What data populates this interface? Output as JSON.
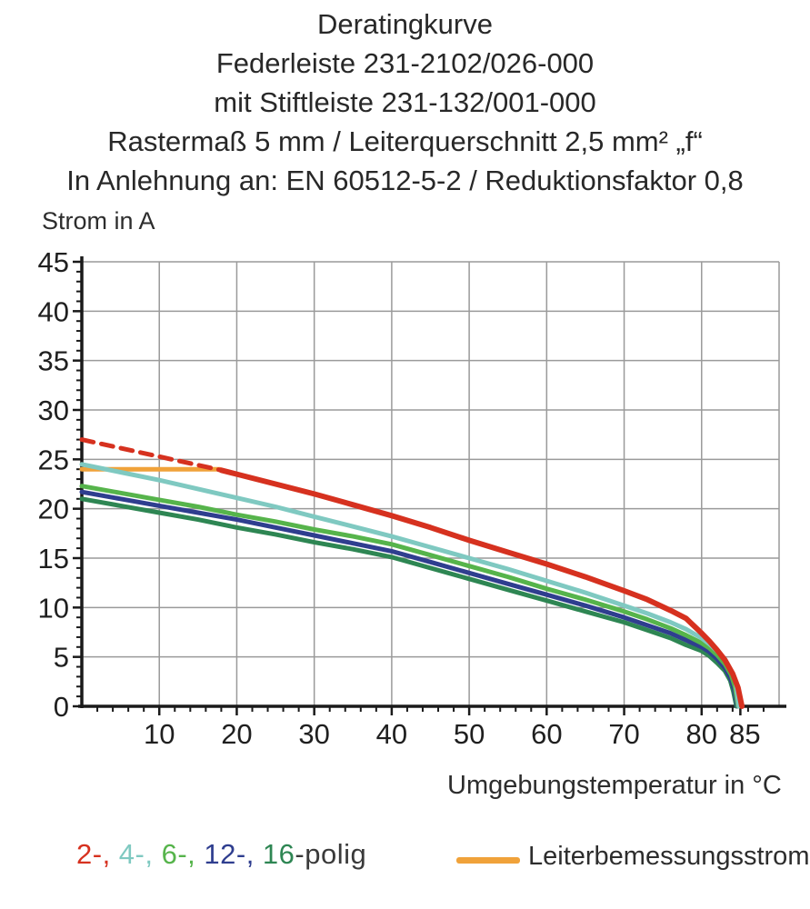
{
  "title": {
    "lines": [
      "Deratingkurve",
      "Federleiste 231-2102/026-000",
      "mit Stiftleiste 231-132/001-000",
      "Rastermaß 5 mm / Leiterquerschnitt 2,5 mm² „f“",
      "In Anlehnung an: EN 60512-5-2 / Reduktionsfaktor 0,8"
    ]
  },
  "colors": {
    "red": "#d6311f",
    "teal": "#7fc9c1",
    "light_green": "#56b44b",
    "dark_blue": "#2f3e8f",
    "dark_green": "#2e8653",
    "orange": "#f0a23a",
    "grid": "#9a9a9a",
    "axis": "#1a1a1a"
  },
  "legend": {
    "poles_parts": [
      {
        "text": "2-,",
        "color": "#d6311f"
      },
      {
        "text": " 4-,",
        "color": "#7fc9c1"
      },
      {
        "text": " 6-,",
        "color": "#56b44b"
      },
      {
        "text": " 12-,",
        "color": "#2f3e8f"
      },
      {
        "text": " 16",
        "color": "#2e8653"
      },
      {
        "text": "-polig",
        "color": "#3a3a3a"
      }
    ],
    "line_label": "Leiterbemessungsstrom",
    "line_color": "#f0a23a"
  },
  "chart_data": {
    "type": "line",
    "title": "Deratingkurve",
    "xlabel": "Umgebungstemperatur in °C",
    "ylabel": "Strom in A",
    "xlim": [
      0,
      90
    ],
    "ylim": [
      0,
      45
    ],
    "grid": true,
    "x_gridline_step": 10,
    "y_gridline_step": 5,
    "x_minor_tick_step": 2,
    "y_minor_tick_step": 1,
    "x_major_ticks": [
      10,
      20,
      30,
      40,
      50,
      60,
      70,
      80,
      85
    ],
    "y_major_ticks": [
      0,
      5,
      10,
      15,
      20,
      25,
      30,
      35,
      40,
      45
    ],
    "legend_position": "bottom",
    "series": [
      {
        "name": "Leiterbemessungsstrom",
        "color": "#f0a23a",
        "style": "solid",
        "width": 5,
        "points": [
          [
            0,
            24
          ],
          [
            17.8,
            24
          ]
        ]
      },
      {
        "name": "2-polig oberhalb Leiterbemessungsstrom",
        "color": "#d6311f",
        "style": "dashed",
        "width": 5,
        "points": [
          [
            0,
            27
          ],
          [
            18,
            23.9
          ]
        ]
      },
      {
        "name": "16-polig",
        "color": "#2e8653",
        "style": "solid",
        "width": 5,
        "points": [
          [
            0,
            21.0
          ],
          [
            5,
            20.3
          ],
          [
            10,
            19.6
          ],
          [
            15,
            18.9
          ],
          [
            20,
            18.1
          ],
          [
            25,
            17.4
          ],
          [
            30,
            16.6
          ],
          [
            35,
            15.9
          ],
          [
            40,
            15.1
          ],
          [
            45,
            14.0
          ],
          [
            50,
            12.9
          ],
          [
            55,
            11.8
          ],
          [
            60,
            10.7
          ],
          [
            65,
            9.6
          ],
          [
            70,
            8.5
          ],
          [
            73,
            7.7
          ],
          [
            76,
            6.9
          ],
          [
            78,
            6.2
          ],
          [
            80,
            5.6
          ],
          [
            81,
            5.1
          ],
          [
            82,
            4.4
          ],
          [
            83,
            3.6
          ],
          [
            83.7,
            2.6
          ],
          [
            84.1,
            1.5
          ],
          [
            84.5,
            0
          ]
        ]
      },
      {
        "name": "12-polig",
        "color": "#2f3e8f",
        "style": "solid",
        "width": 5,
        "points": [
          [
            0,
            21.7
          ],
          [
            5,
            21.0
          ],
          [
            10,
            20.3
          ],
          [
            15,
            19.6
          ],
          [
            20,
            18.9
          ],
          [
            25,
            18.1
          ],
          [
            30,
            17.3
          ],
          [
            35,
            16.5
          ],
          [
            40,
            15.7
          ],
          [
            45,
            14.6
          ],
          [
            50,
            13.5
          ],
          [
            55,
            12.4
          ],
          [
            60,
            11.3
          ],
          [
            65,
            10.2
          ],
          [
            70,
            9.0
          ],
          [
            73,
            8.2
          ],
          [
            76,
            7.4
          ],
          [
            78,
            6.7
          ],
          [
            80,
            6.0
          ],
          [
            81,
            5.5
          ],
          [
            82,
            4.8
          ],
          [
            83,
            3.9
          ],
          [
            83.7,
            2.9
          ],
          [
            84.2,
            1.7
          ],
          [
            84.6,
            0
          ]
        ]
      },
      {
        "name": "6-polig",
        "color": "#56b44b",
        "style": "solid",
        "width": 5,
        "points": [
          [
            0,
            22.3
          ],
          [
            5,
            21.6
          ],
          [
            10,
            20.9
          ],
          [
            15,
            20.2
          ],
          [
            20,
            19.4
          ],
          [
            25,
            18.7
          ],
          [
            30,
            17.9
          ],
          [
            35,
            17.2
          ],
          [
            40,
            16.4
          ],
          [
            45,
            15.3
          ],
          [
            50,
            14.2
          ],
          [
            55,
            13.1
          ],
          [
            60,
            11.9
          ],
          [
            65,
            10.8
          ],
          [
            70,
            9.6
          ],
          [
            73,
            8.8
          ],
          [
            76,
            7.9
          ],
          [
            78,
            7.2
          ],
          [
            80,
            6.4
          ],
          [
            81,
            5.9
          ],
          [
            82,
            5.2
          ],
          [
            83,
            4.3
          ],
          [
            83.8,
            3.2
          ],
          [
            84.3,
            2.0
          ],
          [
            84.7,
            0
          ]
        ]
      },
      {
        "name": "4-polig",
        "color": "#7fc9c1",
        "style": "solid",
        "width": 5,
        "points": [
          [
            0,
            24.5
          ],
          [
            5,
            23.7
          ],
          [
            10,
            22.9
          ],
          [
            15,
            22.0
          ],
          [
            20,
            21.1
          ],
          [
            25,
            20.2
          ],
          [
            30,
            19.2
          ],
          [
            35,
            18.2
          ],
          [
            40,
            17.2
          ],
          [
            45,
            16.1
          ],
          [
            50,
            15.0
          ],
          [
            55,
            13.9
          ],
          [
            60,
            12.7
          ],
          [
            65,
            11.5
          ],
          [
            70,
            10.2
          ],
          [
            73,
            9.4
          ],
          [
            76,
            8.5
          ],
          [
            78,
            7.8
          ],
          [
            80,
            6.9
          ],
          [
            81,
            6.3
          ],
          [
            82,
            5.6
          ],
          [
            83,
            4.7
          ],
          [
            83.8,
            3.6
          ],
          [
            84.4,
            2.4
          ],
          [
            84.8,
            0
          ]
        ]
      },
      {
        "name": "2-polig",
        "color": "#d6311f",
        "style": "solid",
        "width": 6,
        "points": [
          [
            18,
            23.9
          ],
          [
            20,
            23.5
          ],
          [
            25,
            22.5
          ],
          [
            30,
            21.5
          ],
          [
            35,
            20.4
          ],
          [
            40,
            19.3
          ],
          [
            45,
            18.1
          ],
          [
            50,
            16.8
          ],
          [
            55,
            15.6
          ],
          [
            60,
            14.4
          ],
          [
            65,
            13.1
          ],
          [
            70,
            11.7
          ],
          [
            73,
            10.8
          ],
          [
            76,
            9.7
          ],
          [
            78,
            8.9
          ],
          [
            80,
            7.4
          ],
          [
            81,
            6.6
          ],
          [
            82,
            5.7
          ],
          [
            83,
            4.7
          ],
          [
            84,
            3.3
          ],
          [
            84.7,
            1.9
          ],
          [
            85.2,
            0
          ]
        ]
      }
    ]
  }
}
